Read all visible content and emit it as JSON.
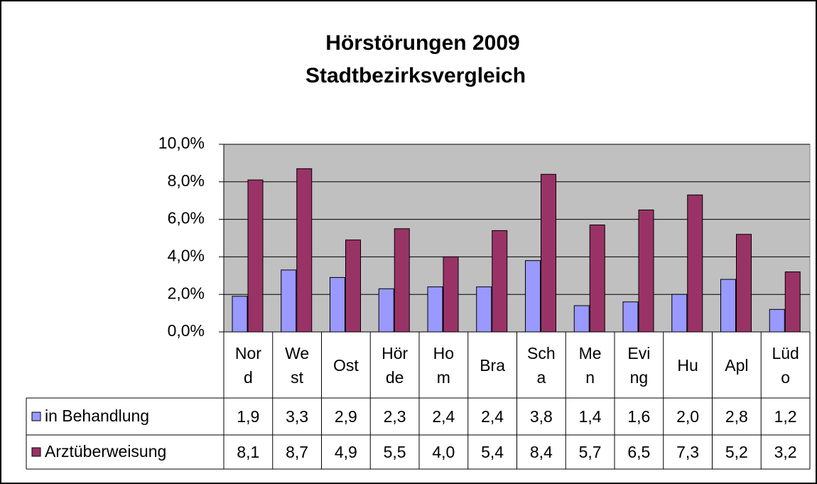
{
  "chart_data": {
    "type": "bar",
    "title": [
      "Hörstörungen 2009",
      "Stadtbezirksvergleich"
    ],
    "categories": [
      "Nord",
      "West",
      "Ost",
      "Hörde",
      "Hom",
      "Bra",
      "Scha",
      "Men",
      "Eving",
      "Hu",
      "Apl",
      "Lüdo"
    ],
    "series": [
      {
        "name": "in Behandlung",
        "color": "#9999ff",
        "values": [
          1.9,
          3.3,
          2.9,
          2.3,
          2.4,
          2.4,
          3.8,
          1.4,
          1.6,
          2.0,
          2.8,
          1.2
        ],
        "value_labels": [
          "1,9",
          "3,3",
          "2,9",
          "2,3",
          "2,4",
          "2,4",
          "3,8",
          "1,4",
          "1,6",
          "2,0",
          "2,8",
          "1,2"
        ]
      },
      {
        "name": "Arztüberweisung",
        "color": "#993366",
        "values": [
          8.1,
          8.7,
          4.9,
          5.5,
          4.0,
          5.4,
          8.4,
          5.7,
          6.5,
          7.3,
          5.2,
          3.2
        ],
        "value_labels": [
          "8,1",
          "8,7",
          "4,9",
          "5,5",
          "4,0",
          "5,4",
          "8,4",
          "5,7",
          "6,5",
          "7,3",
          "5,2",
          "3,2"
        ]
      }
    ],
    "ylim": [
      0,
      10
    ],
    "yticks": [
      {
        "value": 0,
        "label": "0,0%"
      },
      {
        "value": 2,
        "label": "2,0%"
      },
      {
        "value": 4,
        "label": "4,0%"
      },
      {
        "value": 6,
        "label": "6,0%"
      },
      {
        "value": 8,
        "label": "8,0%"
      },
      {
        "value": 10,
        "label": "10,0%"
      }
    ],
    "grid": true,
    "plot_background": "#c0c0c0"
  }
}
